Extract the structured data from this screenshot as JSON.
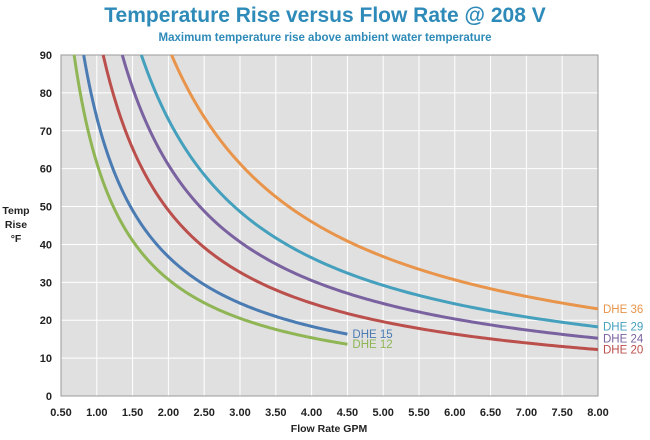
{
  "chart_data": {
    "type": "line",
    "title": "Temperature Rise versus Flow Rate @ 208 V",
    "subtitle": "Maximum temperature rise above ambient water temperature",
    "xlabel": "Flow Rate GPM",
    "ylabel": [
      "Temp",
      "Rise",
      "°F"
    ],
    "xlim": [
      0.5,
      8.0
    ],
    "ylim": [
      0,
      90
    ],
    "x_ticks": [
      "0.50",
      "1.00",
      "1.50",
      "2.00",
      "2.50",
      "3.00",
      "3.50",
      "4.00",
      "4.50",
      "5.00",
      "5.50",
      "6.00",
      "6.50",
      "7.00",
      "7.50",
      "8.00"
    ],
    "y_ticks": [
      "0",
      "10",
      "20",
      "30",
      "40",
      "50",
      "60",
      "70",
      "80",
      "90"
    ],
    "grid": true,
    "series": [
      {
        "name": "DHE 12",
        "color": "#8fb555",
        "k": 61.5,
        "x_start": 0.683,
        "x_end": 4.5
      },
      {
        "name": "DHE 15",
        "color": "#4a7bb3",
        "k": 73.5,
        "x_start": 0.817,
        "x_end": 4.5
      },
      {
        "name": "DHE 20",
        "color": "#bb4f4c",
        "k": 98.0,
        "x_start": 1.089,
        "x_end": 8.0
      },
      {
        "name": "DHE 24",
        "color": "#7a62a0",
        "k": 122.0,
        "x_start": 1.356,
        "x_end": 8.0
      },
      {
        "name": "DHE 29",
        "color": "#45a0bd",
        "k": 146.0,
        "x_start": 1.622,
        "x_end": 8.0
      },
      {
        "name": "DHE 36",
        "color": "#e8954b",
        "k": 184.0,
        "x_start": 2.044,
        "x_end": 8.0
      }
    ],
    "annotations": [
      {
        "text": "DHE 15",
        "series": "DHE 15",
        "x": 4.5,
        "y": 16.3
      },
      {
        "text": "DHE 12",
        "series": "DHE 12",
        "x": 4.5,
        "y": 13.7
      },
      {
        "text": "DHE 36",
        "series": "DHE 36",
        "x": 8.0,
        "y": 23.0
      },
      {
        "text": "DHE 29",
        "series": "DHE 29",
        "x": 8.0,
        "y": 18.3
      },
      {
        "text": "DHE 24",
        "series": "DHE 24",
        "x": 8.0,
        "y": 15.2
      },
      {
        "text": "DHE 20",
        "series": "DHE 20",
        "x": 8.0,
        "y": 12.3
      }
    ]
  }
}
